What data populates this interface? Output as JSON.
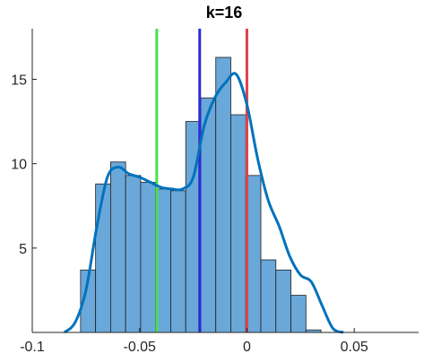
{
  "chart_data": {
    "type": "bar",
    "title": "k=16",
    "xlabel": "",
    "ylabel": "",
    "xlim": [
      -0.1,
      0.08
    ],
    "ylim": [
      0,
      18
    ],
    "xticks": [
      -0.1,
      -0.05,
      0,
      0.05
    ],
    "xtick_labels": [
      "-0.1",
      "-0.05",
      "0",
      "0.05"
    ],
    "yticks": [
      5,
      10,
      15
    ],
    "ytick_labels": [
      "5",
      "10",
      "15"
    ],
    "grid": false,
    "histogram": {
      "bin_edges": [
        -0.0775,
        -0.0705,
        -0.0635,
        -0.0565,
        -0.0495,
        -0.0425,
        -0.0355,
        -0.0285,
        -0.0215,
        -0.0145,
        -0.0075,
        -0.0005,
        0.0065,
        0.0135,
        0.0205,
        0.0275,
        0.0345,
        0.0415
      ],
      "values": [
        3.7,
        8.8,
        10.1,
        9.3,
        8.9,
        8.5,
        8.4,
        12.5,
        13.9,
        16.3,
        12.9,
        9.3,
        4.3,
        3.7,
        2.2,
        0.15,
        0
      ],
      "color": "#6aa8d9",
      "edge_color": "#1f1f1f"
    },
    "density_curve": {
      "x": [
        -0.085,
        -0.08,
        -0.075,
        -0.07,
        -0.065,
        -0.06,
        -0.055,
        -0.05,
        -0.045,
        -0.04,
        -0.035,
        -0.03,
        -0.025,
        -0.02,
        -0.015,
        -0.01,
        -0.005,
        0,
        0.005,
        0.01,
        0.015,
        0.02,
        0.025,
        0.03,
        0.035,
        0.04,
        0.045
      ],
      "y": [
        0,
        0.6,
        2.5,
        6.2,
        9.2,
        9.8,
        9.4,
        9.2,
        8.9,
        8.6,
        8.5,
        8.5,
        9.2,
        12.2,
        13.9,
        14.8,
        15.3,
        13.5,
        10.3,
        7.8,
        6.3,
        4.5,
        3.4,
        3.0,
        1.6,
        0.25,
        0
      ],
      "color": "#0072bd"
    },
    "vertical_lines": [
      {
        "x": -0.042,
        "color": "#4be04b"
      },
      {
        "x": -0.022,
        "color": "#2c2cd6"
      },
      {
        "x": 0,
        "color": "#e0404a"
      }
    ]
  }
}
